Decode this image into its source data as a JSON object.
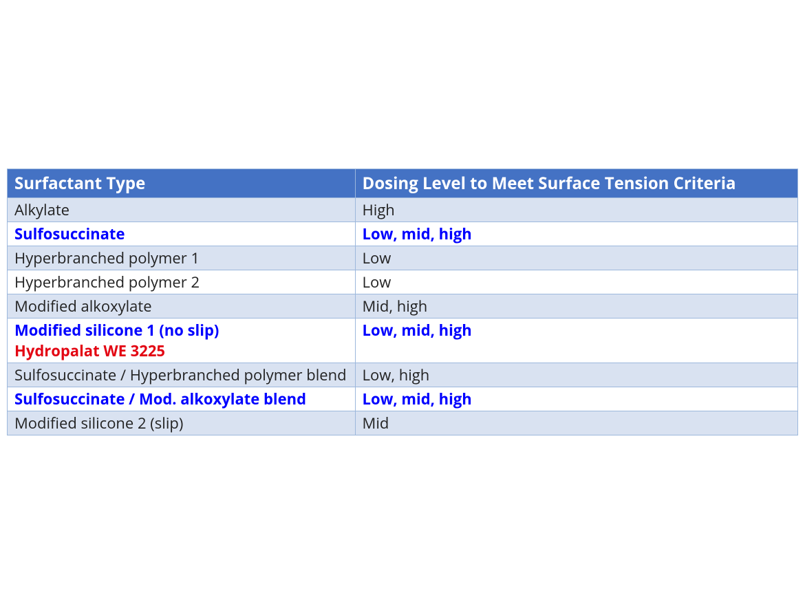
{
  "table": {
    "header_bg": "#4472c4",
    "header_text_color": "#ffffff",
    "header_fontsize": "24px",
    "body_fontsize": "22px",
    "row_stripe_colors": [
      "#d9e2f1",
      "#ffffff"
    ],
    "border_color": "#9cb7dc",
    "highlight_color": "#0000ff",
    "highlight2_color": "#e30613",
    "normal_text_color": "#222222",
    "col_widths": [
      "44%",
      "56%"
    ],
    "columns": [
      "Surfactant Type",
      "Dosing Level to Meet Surface Tension Criteria"
    ],
    "rows": [
      {
        "type": "Alkylate",
        "dosing": "High",
        "bold": false,
        "color": "normal"
      },
      {
        "type": "Sulfosuccinate",
        "dosing": "Low, mid, high",
        "bold": true,
        "color": "highlight"
      },
      {
        "type": "Hyperbranched polymer 1",
        "dosing": "Low",
        "bold": false,
        "color": "normal"
      },
      {
        "type": "Hyperbranched polymer 2",
        "dosing": "Low",
        "bold": false,
        "color": "normal"
      },
      {
        "type": "Modified alkoxylate",
        "dosing": "Mid, high",
        "bold": false,
        "color": "normal"
      },
      {
        "type": "Modified silicone 1 (no slip)",
        "type_sub": "Hydropalat WE 3225",
        "dosing": "Low, mid, high",
        "bold": true,
        "color": "highlight",
        "sub_color": "highlight2"
      },
      {
        "type": "Sulfosuccinate / Hyperbranched polymer blend",
        "dosing": "Low, high",
        "bold": false,
        "color": "normal"
      },
      {
        "type": "Sulfosuccinate / Mod. alkoxylate blend",
        "dosing": "Low, mid, high",
        "bold": true,
        "color": "highlight"
      },
      {
        "type": "Modified silicone 2 (slip)",
        "dosing": "Mid",
        "bold": false,
        "color": "normal"
      }
    ]
  }
}
